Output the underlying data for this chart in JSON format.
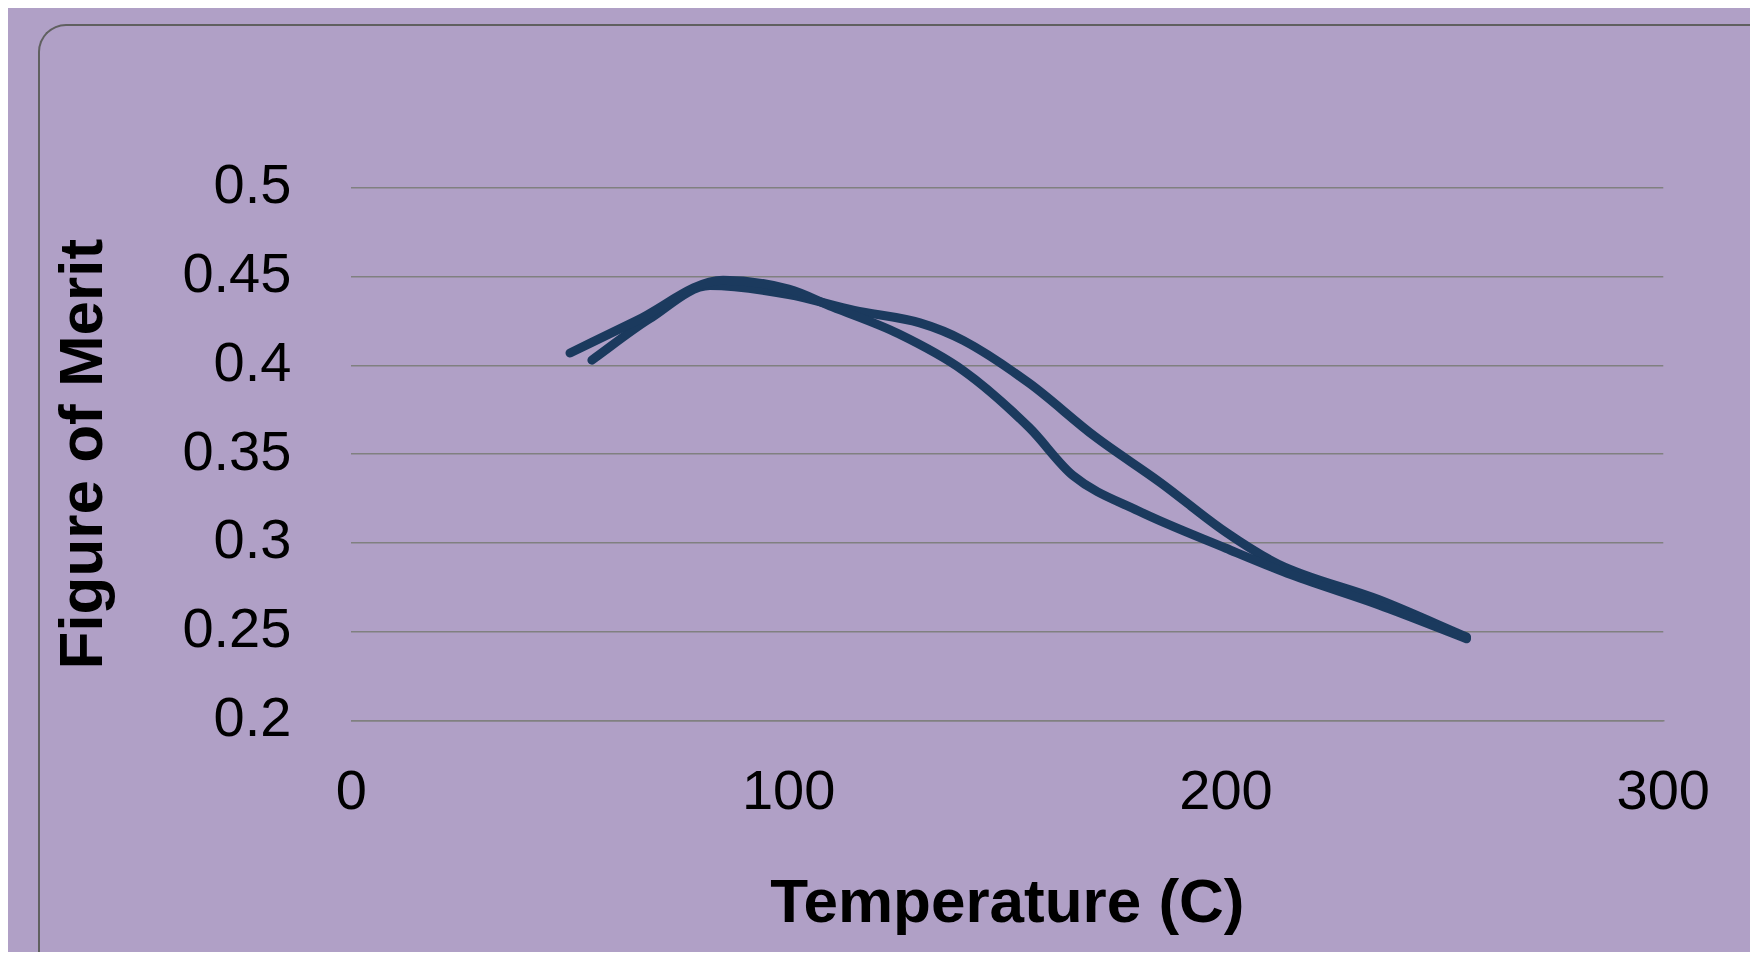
{
  "chart_data": {
    "type": "line",
    "xlabel": "Temperature (C)",
    "ylabel": "Figure of Merit",
    "xlim": [
      0,
      300
    ],
    "xticks": [
      0,
      100,
      200,
      300
    ],
    "ylim": [
      0.2,
      0.5
    ],
    "yticks": [
      0.2,
      0.25,
      0.3,
      0.35,
      0.4,
      0.45,
      0.5
    ],
    "grid": "y",
    "marker": "none",
    "line_style": "solid",
    "series": [
      {
        "color": "#1b3a5e",
        "x": [
          50,
          65,
          85,
          100,
          110,
          125,
          140,
          155,
          165,
          180,
          200,
          215,
          235,
          255
        ],
        "values": [
          0.407,
          0.425,
          0.448,
          0.443,
          0.433,
          0.418,
          0.397,
          0.365,
          0.338,
          0.318,
          0.297,
          0.282,
          0.265,
          0.246
        ]
      },
      {
        "color": "#1b3a5e",
        "x": [
          55,
          68,
          82,
          100,
          115,
          130,
          140,
          155,
          170,
          185,
          200,
          212,
          235,
          255
        ],
        "values": [
          0.403,
          0.426,
          0.445,
          0.44,
          0.431,
          0.424,
          0.414,
          0.39,
          0.36,
          0.334,
          0.306,
          0.288,
          0.268,
          0.247
        ]
      }
    ]
  }
}
